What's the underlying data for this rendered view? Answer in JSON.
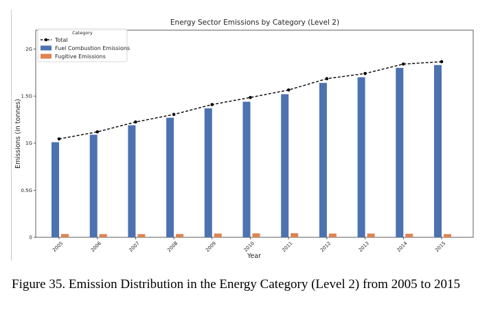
{
  "figure": {
    "caption": "Figure 35.  Emission Distribution in the Energy Category (Level 2) from 2005 to 2015"
  },
  "chart_data": {
    "type": "bar",
    "title": "Energy Sector Emissions by Category (Level 2)",
    "xlabel": "Year",
    "ylabel": "Emissions (in tonnes)",
    "categories": [
      "2005",
      "2006",
      "2007",
      "2008",
      "2009",
      "2010",
      "2011",
      "2012",
      "2013",
      "2014",
      "2015"
    ],
    "y_ticks": [
      {
        "value": 0,
        "label": "0"
      },
      {
        "value": 0.5,
        "label": "0.5G"
      },
      {
        "value": 1.0,
        "label": "1G"
      },
      {
        "value": 1.5,
        "label": "1.5G"
      },
      {
        "value": 2.0,
        "label": "2G"
      }
    ],
    "ylim": [
      0,
      2.2
    ],
    "y_unit": "billion tonnes (G)",
    "grid": false,
    "legend": {
      "title": "Category",
      "placement": "top-left",
      "entries": [
        "Total",
        "Fuel Combustion Emissions",
        "Fugitive Emissions"
      ]
    },
    "series": [
      {
        "name": "Fuel Combustion Emissions",
        "kind": "bar",
        "color": "#4c72b0",
        "values": [
          1.01,
          1.09,
          1.19,
          1.27,
          1.37,
          1.44,
          1.52,
          1.64,
          1.7,
          1.8,
          1.83
        ]
      },
      {
        "name": "Fugitive Emissions",
        "kind": "bar",
        "color": "#dd8452",
        "values": [
          0.035,
          0.034,
          0.034,
          0.035,
          0.04,
          0.042,
          0.044,
          0.04,
          0.04,
          0.038,
          0.034
        ]
      },
      {
        "name": "Total",
        "kind": "line",
        "color": "#000000",
        "style": "dashed",
        "marker": "circle",
        "values": [
          1.045,
          1.12,
          1.225,
          1.305,
          1.41,
          1.485,
          1.565,
          1.685,
          1.74,
          1.84,
          1.865
        ]
      }
    ]
  }
}
